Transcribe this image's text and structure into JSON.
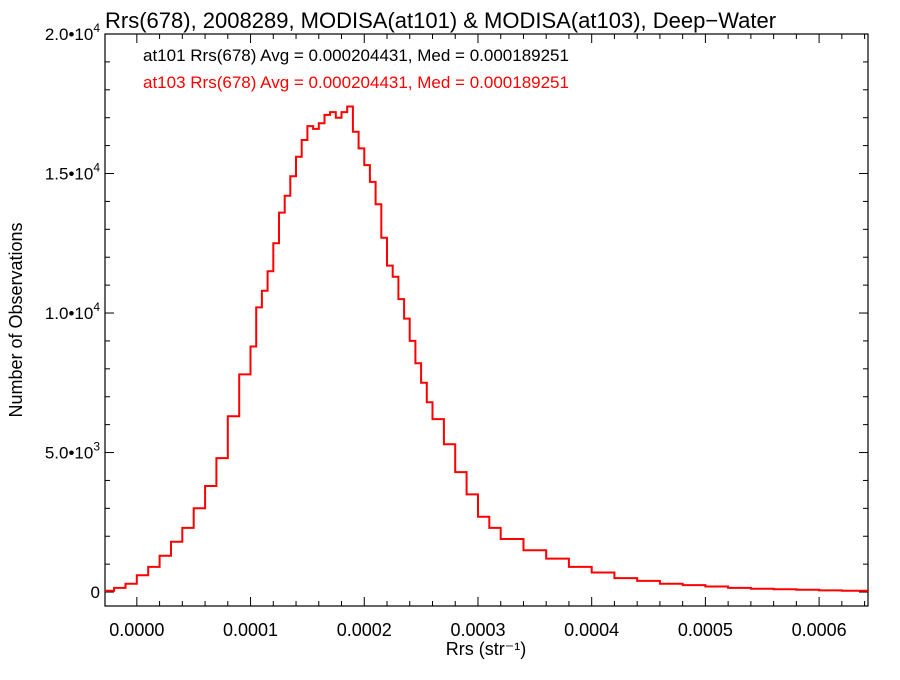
{
  "chart_data": {
    "type": "line",
    "title": "Rrs(678), 2008289, MODISA(at101) & MODISA(at103), Deep−Water",
    "xlabel": "Rrs (str⁻¹)",
    "ylabel": "Number of Observations",
    "xlim": [
      -2.8e-05,
      0.000643
    ],
    "ylim": [
      -500,
      20000
    ],
    "x_ticks": [
      0.0,
      0.0001,
      0.0002,
      0.0003,
      0.0004,
      0.0005,
      0.0006
    ],
    "x_tick_labels": [
      "0.0000",
      "0.0001",
      "0.0002",
      "0.0003",
      "0.0004",
      "0.0005",
      "0.0006"
    ],
    "y_ticks": [
      0,
      5000,
      10000,
      15000,
      20000
    ],
    "y_tick_labels": [
      {
        "mantissa": "0",
        "exp": ""
      },
      {
        "mantissa": "5.0•10",
        "exp": "3"
      },
      {
        "mantissa": "1.0•10",
        "exp": "4"
      },
      {
        "mantissa": "1.5•10",
        "exp": "4"
      },
      {
        "mantissa": "2.0•10",
        "exp": "4"
      }
    ],
    "grid": false,
    "legend_placement": "top-left",
    "annotations": [
      {
        "text": "at101 Rrs(678) Avg = 0.000204431, Med = 0.000189251",
        "color": "#000000"
      },
      {
        "text": "at103 Rrs(678) Avg = 0.000204431, Med = 0.000189251",
        "color": "#ff0000"
      }
    ],
    "series": [
      {
        "color": "#ff0000",
        "x": [
          -2.8e-05,
          -2e-05,
          -1e-05,
          0.0,
          1e-05,
          2e-05,
          3e-05,
          4e-05,
          5e-05,
          6e-05,
          7e-05,
          8e-05,
          9e-05,
          0.0001,
          0.000105,
          0.00011,
          0.000115,
          0.00012,
          0.000125,
          0.00013,
          0.000135,
          0.00014,
          0.000145,
          0.00015,
          0.000155,
          0.00016,
          0.000165,
          0.00017,
          0.000175,
          0.00018,
          0.000185,
          0.00019,
          0.000195,
          0.0002,
          0.000205,
          0.00021,
          0.000215,
          0.00022,
          0.000225,
          0.00023,
          0.000235,
          0.00024,
          0.000245,
          0.00025,
          0.000255,
          0.00026,
          0.00027,
          0.00028,
          0.00029,
          0.0003,
          0.00031,
          0.00032,
          0.00034,
          0.00036,
          0.00038,
          0.0004,
          0.00042,
          0.00044,
          0.00046,
          0.00048,
          0.0005,
          0.00052,
          0.00054,
          0.00056,
          0.00058,
          0.0006,
          0.00062,
          0.000643
        ],
        "values": [
          50,
          150,
          300,
          600,
          900,
          1300,
          1800,
          2300,
          3000,
          3800,
          4800,
          6300,
          7800,
          8800,
          10200,
          10800,
          11500,
          12500,
          13600,
          14200,
          14900,
          15600,
          16200,
          16700,
          16600,
          16800,
          17100,
          17200,
          17000,
          17200,
          17400,
          16500,
          15900,
          15300,
          14700,
          13900,
          12700,
          11700,
          11300,
          10500,
          9800,
          9000,
          8200,
          7500,
          6800,
          6200,
          5300,
          4300,
          3500,
          2700,
          2300,
          1900,
          1500,
          1200,
          900,
          700,
          500,
          400,
          300,
          250,
          200,
          150,
          120,
          100,
          80,
          60,
          50,
          40
        ]
      }
    ]
  }
}
